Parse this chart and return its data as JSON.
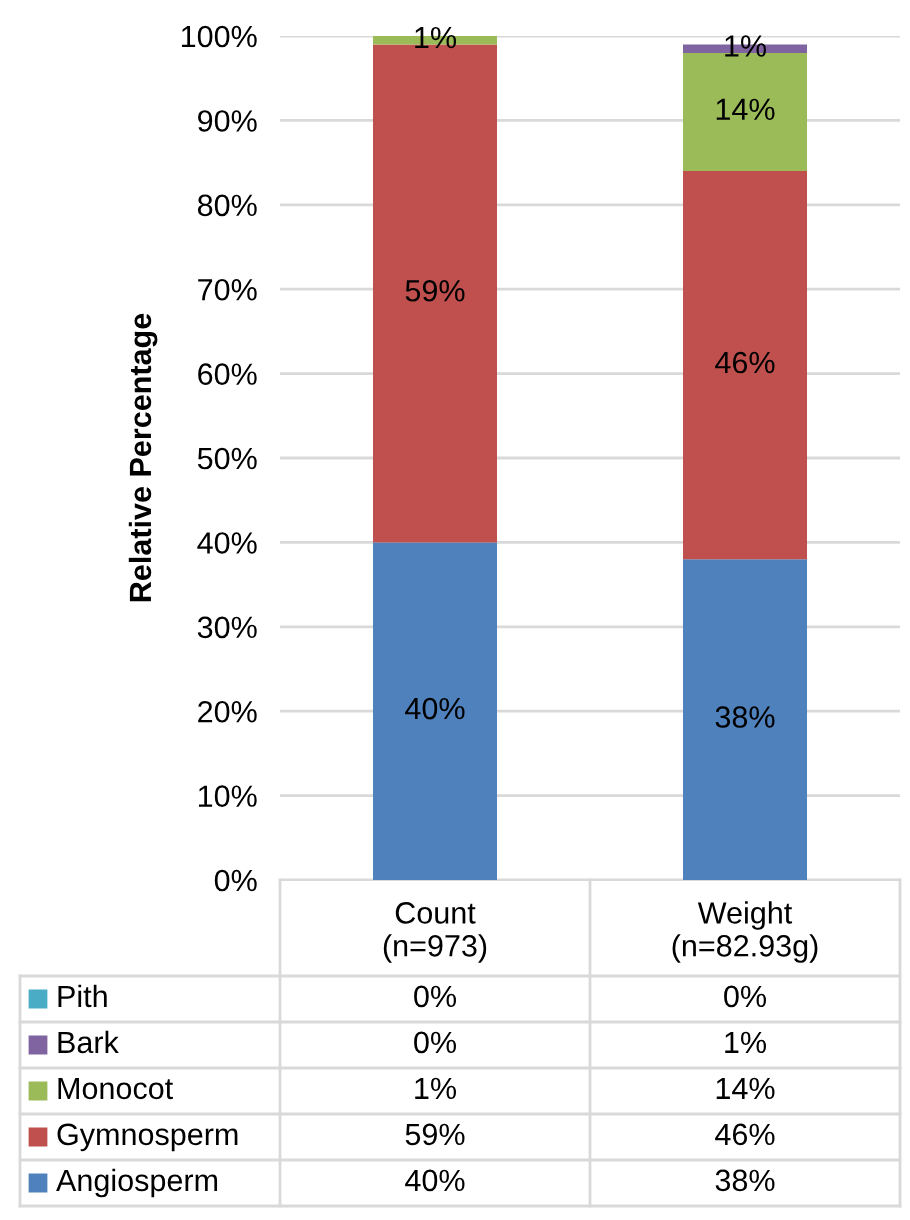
{
  "chart_data": {
    "type": "bar",
    "stacked": true,
    "ylabel": "Relative Percentage",
    "categories": [
      "Count\n(n=973)",
      "Weight\n(n=82.93g)"
    ],
    "series": [
      {
        "name": "Angiosperm",
        "color": "#4f81bd",
        "values": [
          40,
          38
        ],
        "value_labels": [
          "40%",
          "38%"
        ]
      },
      {
        "name": "Gymnosperm",
        "color": "#c0504d",
        "values": [
          59,
          46
        ],
        "value_labels": [
          "59%",
          "46%"
        ]
      },
      {
        "name": "Monocot",
        "color": "#9bbb59",
        "values": [
          1,
          14
        ],
        "value_labels": [
          "1%",
          "14%"
        ]
      },
      {
        "name": "Bark",
        "color": "#8064a2",
        "values": [
          0,
          1
        ],
        "value_labels": [
          "0%",
          "1%"
        ]
      },
      {
        "name": "Pith",
        "color": "#4bacc6",
        "values": [
          0,
          0
        ],
        "value_labels": [
          "0%",
          "0%"
        ]
      }
    ],
    "ylim": [
      0,
      100
    ],
    "yticks": [
      {
        "value": 0,
        "label": "0%"
      },
      {
        "value": 10,
        "label": "10%"
      },
      {
        "value": 20,
        "label": "20%"
      },
      {
        "value": 30,
        "label": "30%"
      },
      {
        "value": 40,
        "label": "40%"
      },
      {
        "value": 50,
        "label": "50%"
      },
      {
        "value": 60,
        "label": "60%"
      },
      {
        "value": 70,
        "label": "70%"
      },
      {
        "value": 80,
        "label": "80%"
      },
      {
        "value": 90,
        "label": "90%"
      },
      {
        "value": 100,
        "label": "100%"
      }
    ],
    "grid": "y",
    "legend": "bottom"
  }
}
